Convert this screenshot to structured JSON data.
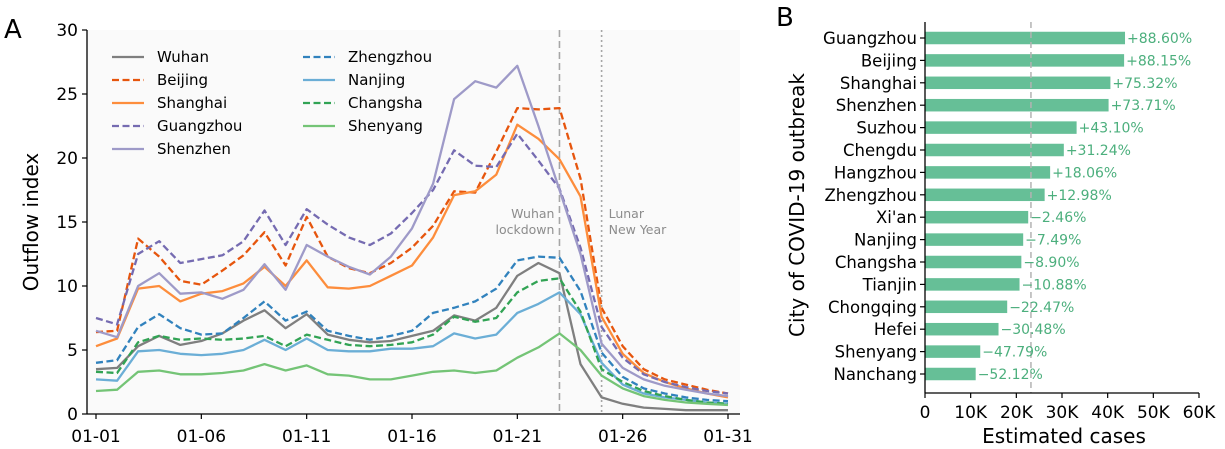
{
  "chart_data": [
    {
      "panel": "A",
      "type": "line",
      "ylabel": "Outflow index",
      "xlabel": "",
      "ylim": [
        0,
        30
      ],
      "yticks": [
        0,
        5,
        10,
        15,
        20,
        25,
        30
      ],
      "xticks": [
        "01-01",
        "01-06",
        "01-11",
        "01-16",
        "01-21",
        "01-26",
        "01-31"
      ],
      "legend_placement": "upper-left",
      "x": [
        "01-01",
        "01-02",
        "01-03",
        "01-04",
        "01-05",
        "01-06",
        "01-07",
        "01-08",
        "01-09",
        "01-10",
        "01-11",
        "01-12",
        "01-13",
        "01-14",
        "01-15",
        "01-16",
        "01-17",
        "01-18",
        "01-19",
        "01-20",
        "01-21",
        "01-22",
        "01-23",
        "01-24",
        "01-25",
        "01-26",
        "01-27",
        "01-28",
        "01-29",
        "01-30",
        "01-31"
      ],
      "annotations": [
        {
          "x": "01-23",
          "lines": [
            "Wuhan",
            "lockdown"
          ],
          "style": "dashed",
          "color": "#a6a6a6"
        },
        {
          "x": "01-25",
          "lines": [
            "Lunar",
            "New Year"
          ],
          "style": "dotted",
          "color": "#a6a6a6"
        }
      ],
      "series": [
        {
          "name": "Wuhan",
          "color": "#7f7f7f",
          "dash": "solid",
          "values": [
            3.5,
            3.6,
            5.3,
            6.1,
            5.4,
            5.7,
            6.3,
            7.3,
            8.1,
            6.7,
            7.8,
            6.2,
            5.8,
            5.6,
            5.7,
            6.1,
            6.5,
            7.7,
            7.3,
            8.3,
            10.8,
            11.8,
            11.0,
            3.9,
            1.3,
            0.8,
            0.5,
            0.4,
            0.3,
            0.3,
            0.3
          ]
        },
        {
          "name": "Beijing",
          "color": "#e6550d",
          "dash": "dashed",
          "values": [
            6.4,
            6.5,
            13.7,
            12.3,
            10.4,
            10.1,
            11.2,
            12.4,
            14.2,
            11.6,
            15.4,
            12.3,
            11.4,
            11.0,
            11.8,
            13.0,
            14.7,
            17.4,
            17.3,
            20.5,
            23.9,
            23.8,
            23.9,
            18.4,
            8.3,
            5.3,
            3.5,
            2.7,
            2.3,
            1.9,
            1.6
          ]
        },
        {
          "name": "Shanghai",
          "color": "#fd8d3c",
          "dash": "solid",
          "values": [
            5.3,
            5.9,
            9.8,
            10.0,
            8.8,
            9.4,
            9.6,
            10.2,
            11.5,
            10.0,
            12.0,
            9.9,
            9.8,
            10.0,
            10.8,
            11.6,
            13.8,
            17.1,
            17.4,
            18.7,
            22.6,
            21.5,
            19.9,
            17.0,
            7.6,
            4.7,
            3.2,
            2.5,
            2.0,
            1.6,
            1.3
          ]
        },
        {
          "name": "Guangzhou",
          "color": "#756bb1",
          "dash": "dashed",
          "values": [
            7.5,
            7.0,
            12.5,
            13.5,
            11.8,
            12.1,
            12.4,
            13.5,
            15.9,
            13.2,
            16.0,
            14.8,
            13.8,
            13.2,
            14.1,
            15.7,
            17.5,
            20.6,
            19.4,
            19.3,
            21.9,
            19.8,
            17.6,
            13.0,
            6.8,
            4.4,
            3.1,
            2.5,
            2.1,
            1.8,
            1.6
          ]
        },
        {
          "name": "Shenzhen",
          "color": "#9e9ac8",
          "dash": "solid",
          "values": [
            6.5,
            6.0,
            10.0,
            11.0,
            9.4,
            9.5,
            9.0,
            9.7,
            11.7,
            9.7,
            13.2,
            12.3,
            11.5,
            10.9,
            12.3,
            14.5,
            18.0,
            24.6,
            26.0,
            25.5,
            27.2,
            22.5,
            17.5,
            12.5,
            5.5,
            3.6,
            2.7,
            2.2,
            1.9,
            1.6,
            1.4
          ]
        },
        {
          "name": "Zhengzhou",
          "color": "#3182bd",
          "dash": "dashed",
          "values": [
            4.0,
            4.2,
            6.8,
            7.8,
            6.7,
            6.2,
            6.3,
            7.5,
            8.8,
            7.3,
            8.0,
            6.5,
            6.1,
            5.8,
            6.1,
            6.5,
            7.9,
            8.3,
            8.8,
            9.8,
            12.0,
            12.3,
            12.2,
            9.6,
            4.8,
            2.9,
            2.0,
            1.6,
            1.3,
            1.1,
            1.0
          ]
        },
        {
          "name": "Nanjing",
          "color": "#6baed6",
          "dash": "solid",
          "values": [
            2.7,
            2.6,
            4.9,
            5.0,
            4.7,
            4.6,
            4.7,
            5.0,
            5.8,
            5.0,
            5.9,
            5.0,
            4.9,
            4.9,
            5.1,
            5.1,
            5.3,
            6.3,
            5.9,
            6.2,
            7.9,
            8.6,
            9.5,
            7.8,
            4.0,
            2.3,
            1.6,
            1.3,
            1.1,
            0.9,
            0.8
          ]
        },
        {
          "name": "Changsha",
          "color": "#31a354",
          "dash": "dashed",
          "values": [
            3.3,
            3.2,
            5.6,
            6.1,
            5.8,
            5.9,
            5.8,
            5.9,
            6.1,
            5.3,
            6.2,
            5.8,
            5.4,
            5.3,
            5.4,
            5.6,
            6.2,
            7.6,
            7.2,
            7.5,
            9.5,
            10.4,
            10.6,
            8.0,
            3.5,
            2.5,
            1.8,
            1.4,
            1.1,
            0.9,
            0.8
          ]
        },
        {
          "name": "Shenyang",
          "color": "#74c476",
          "dash": "solid",
          "values": [
            1.8,
            1.9,
            3.3,
            3.4,
            3.1,
            3.1,
            3.2,
            3.4,
            3.9,
            3.4,
            3.8,
            3.1,
            3.0,
            2.7,
            2.7,
            3.0,
            3.3,
            3.4,
            3.2,
            3.4,
            4.4,
            5.2,
            6.3,
            5.0,
            3.0,
            2.0,
            1.4,
            1.1,
            0.9,
            0.8,
            0.7
          ]
        }
      ]
    },
    {
      "panel": "B",
      "type": "bar",
      "orientation": "horizontal",
      "xlabel": "Estimated cases",
      "ylabel": "City of COVID-19 outbreak",
      "xlim": [
        0,
        60000
      ],
      "xticks": [
        "0",
        "10K",
        "20K",
        "30K",
        "40K",
        "50K",
        "60K"
      ],
      "bar_color": "#66bf97",
      "label_color": "#4caf7d",
      "reference_line": {
        "x": 23200,
        "style": "dashed",
        "color": "#b3b3b3"
      },
      "categories": [
        "Guangzhou",
        "Beijing",
        "Shanghai",
        "Shenzhen",
        "Suzhou",
        "Chengdu",
        "Hangzhou",
        "Zhengzhou",
        "Xi'an",
        "Nanjing",
        "Changsha",
        "Tianjin",
        "Chongqing",
        "Hefei",
        "Shenyang",
        "Nanchang"
      ],
      "values": [
        43800,
        43600,
        40600,
        40200,
        33200,
        30400,
        27400,
        26200,
        22600,
        21500,
        21100,
        20700,
        18000,
        16100,
        12100,
        11100
      ],
      "labels": [
        "+88.60%",
        "+88.15%",
        "+75.32%",
        "+73.71%",
        "+43.10%",
        "+31.24%",
        "+18.06%",
        "+12.98%",
        "−2.46%",
        "−7.49%",
        "−8.90%",
        "−10.88%",
        "−22.47%",
        "−30.48%",
        "−47.79%",
        "−52.12%"
      ]
    }
  ]
}
